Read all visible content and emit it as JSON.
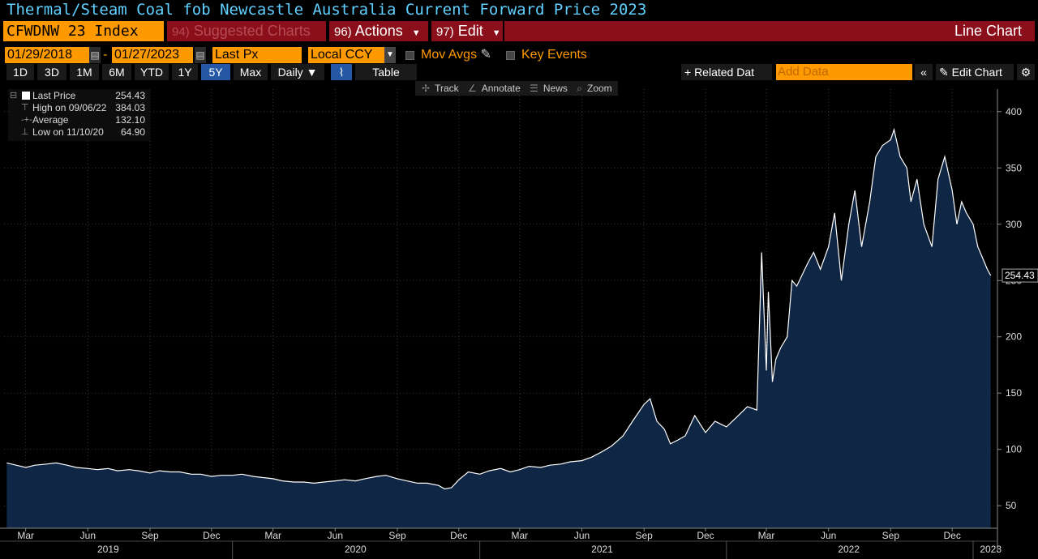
{
  "title": "Thermal/Steam Coal fob Newcastle Australia Current Forward Price 2023",
  "ticker": "CFWDNW 23 Index",
  "menu": {
    "suggested_num": "94)",
    "suggested_label": "Suggested Charts",
    "actions_num": "96)",
    "actions_label": "Actions",
    "edit_num": "97)",
    "edit_label": "Edit",
    "chart_type_label": "Line Chart"
  },
  "params": {
    "start_date": "01/29/2018",
    "end_date": "01/27/2023",
    "field": "Last Px",
    "currency": "Local CCY",
    "mov_avgs_label": "Mov Avgs",
    "key_events_label": "Key Events"
  },
  "ranges": [
    "1D",
    "3D",
    "1M",
    "6M",
    "YTD",
    "1Y",
    "5Y",
    "Max"
  ],
  "active_range": "5Y",
  "periodicity": "Daily",
  "table_label": "Table",
  "related_label": "+ Related Dat",
  "add_data_placeholder": "Add Data",
  "edit_chart_label": "Edit Chart",
  "tools": {
    "track": "Track",
    "annotate": "Annotate",
    "news": "News",
    "zoom": "Zoom"
  },
  "legend": {
    "last_label": "Last Price",
    "last_value": "254.43",
    "high_label": "High on 09/06/22",
    "high_value": "384.03",
    "avg_label": "Average",
    "avg_value": "132.10",
    "low_label": "Low on 11/10/20",
    "low_value": "64.90"
  },
  "colors": {
    "line": "#ffffff",
    "fill": "#0f2645",
    "ticker_bg": "#ff9900",
    "menu_bg": "#8b0f1a",
    "active_range": "#2458a6"
  },
  "chart_data": {
    "type": "area",
    "series": [
      {
        "name": "Last Price",
        "x": [
          "2019-02-01",
          "2019-02-15",
          "2019-03-01",
          "2019-03-15",
          "2019-04-01",
          "2019-04-15",
          "2019-05-01",
          "2019-05-15",
          "2019-06-01",
          "2019-06-15",
          "2019-07-01",
          "2019-07-15",
          "2019-08-01",
          "2019-08-15",
          "2019-09-01",
          "2019-09-15",
          "2019-10-01",
          "2019-10-15",
          "2019-11-01",
          "2019-11-15",
          "2019-12-01",
          "2019-12-15",
          "2020-01-01",
          "2020-01-15",
          "2020-02-01",
          "2020-02-15",
          "2020-03-01",
          "2020-03-15",
          "2020-04-01",
          "2020-04-15",
          "2020-05-01",
          "2020-05-15",
          "2020-06-01",
          "2020-06-15",
          "2020-07-01",
          "2020-07-15",
          "2020-08-01",
          "2020-08-15",
          "2020-09-01",
          "2020-09-15",
          "2020-10-01",
          "2020-10-15",
          "2020-11-01",
          "2020-11-10",
          "2020-11-20",
          "2020-12-01",
          "2020-12-15",
          "2021-01-01",
          "2021-01-15",
          "2021-02-01",
          "2021-02-15",
          "2021-03-01",
          "2021-03-15",
          "2021-04-01",
          "2021-04-15",
          "2021-05-01",
          "2021-05-15",
          "2021-06-01",
          "2021-06-15",
          "2021-07-01",
          "2021-07-15",
          "2021-08-01",
          "2021-08-15",
          "2021-09-01",
          "2021-09-10",
          "2021-09-20",
          "2021-10-01",
          "2021-10-10",
          "2021-10-20",
          "2021-11-01",
          "2021-11-15",
          "2021-12-01",
          "2021-12-15",
          "2022-01-01",
          "2022-01-15",
          "2022-02-01",
          "2022-02-15",
          "2022-02-22",
          "2022-03-01",
          "2022-03-04",
          "2022-03-10",
          "2022-03-15",
          "2022-03-22",
          "2022-04-01",
          "2022-04-08",
          "2022-04-15",
          "2022-05-01",
          "2022-05-10",
          "2022-05-20",
          "2022-06-01",
          "2022-06-10",
          "2022-06-20",
          "2022-07-01",
          "2022-07-10",
          "2022-07-20",
          "2022-08-01",
          "2022-08-10",
          "2022-08-20",
          "2022-09-01",
          "2022-09-06",
          "2022-09-15",
          "2022-09-25",
          "2022-10-01",
          "2022-10-10",
          "2022-10-20",
          "2022-11-01",
          "2022-11-10",
          "2022-11-20",
          "2022-12-01",
          "2022-12-08",
          "2022-12-15",
          "2022-12-22",
          "2023-01-01",
          "2023-01-08",
          "2023-01-15",
          "2023-01-22",
          "2023-01-27"
        ],
        "values": [
          88,
          86,
          84,
          86,
          87,
          88,
          86,
          84,
          83,
          82,
          83,
          81,
          82,
          81,
          79,
          81,
          80,
          80,
          78,
          78,
          76,
          77,
          77,
          78,
          76,
          75,
          74,
          72,
          71,
          71,
          70,
          71,
          72,
          73,
          72,
          74,
          76,
          77,
          74,
          72,
          70,
          70,
          68,
          64.9,
          66,
          73,
          80,
          78,
          81,
          83,
          80,
          82,
          85,
          84,
          86,
          87,
          89,
          90,
          93,
          98,
          103,
          112,
          125,
          140,
          145,
          125,
          118,
          105,
          108,
          112,
          130,
          115,
          125,
          120,
          128,
          138,
          135,
          275,
          170,
          240,
          160,
          180,
          190,
          200,
          250,
          245,
          265,
          275,
          260,
          280,
          310,
          250,
          300,
          330,
          280,
          320,
          360,
          370,
          375,
          384.03,
          360,
          350,
          320,
          340,
          300,
          280,
          340,
          360,
          330,
          300,
          320,
          310,
          300,
          280,
          270,
          260,
          254.43
        ],
        "high": 384.03,
        "low": 64.9,
        "average": 132.1,
        "last": 254.43
      }
    ],
    "y_ticks": [
      50,
      100,
      150,
      200,
      250,
      300,
      350,
      400
    ],
    "ylim": [
      30,
      420
    ],
    "x_tick_months": [
      "Mar",
      "Jun",
      "Sep",
      "Dec",
      "Mar",
      "Jun",
      "Sep",
      "Dec",
      "Mar",
      "Jun",
      "Sep",
      "Dec",
      "Mar",
      "Jun",
      "Sep",
      "Dec"
    ],
    "x_tick_dates": [
      "2019-03-01",
      "2019-06-01",
      "2019-09-01",
      "2019-12-01",
      "2020-03-01",
      "2020-06-01",
      "2020-09-01",
      "2020-12-01",
      "2021-03-01",
      "2021-06-01",
      "2021-09-01",
      "2021-12-01",
      "2022-03-01",
      "2022-06-01",
      "2022-09-01",
      "2022-12-01"
    ],
    "x_years": [
      "2019",
      "2020",
      "2021",
      "2022",
      "2023"
    ],
    "x_year_dates": [
      "2019-07-01",
      "2020-07-01",
      "2021-07-01",
      "2022-07-01",
      "2023-01-27"
    ],
    "xlim": [
      "2019-01-28",
      "2023-02-06"
    ],
    "last_label": "254.43",
    "grid": true,
    "legend": "top-left"
  }
}
